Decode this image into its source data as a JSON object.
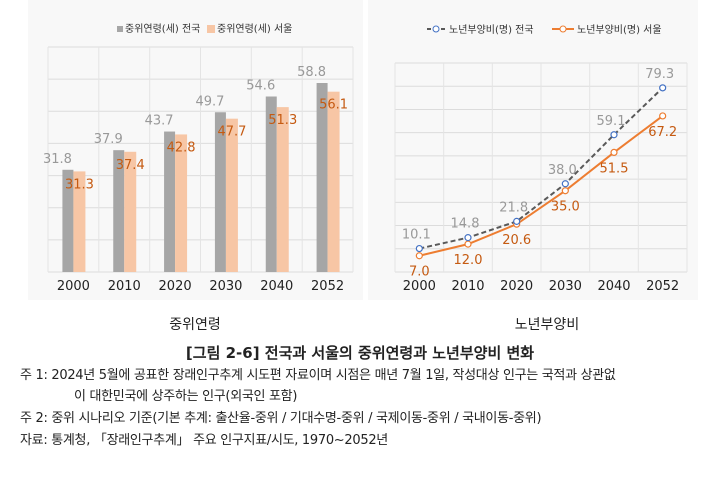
{
  "chart_data": [
    {
      "type": "bar",
      "categories": [
        "2000",
        "2010",
        "2020",
        "2030",
        "2040",
        "2052"
      ],
      "series": [
        {
          "name": "중위연령(세) 전국",
          "values": [
            31.8,
            37.9,
            43.7,
            49.7,
            54.6,
            58.8
          ],
          "color": "#a6a6a6"
        },
        {
          "name": "중위연령(세) 서울",
          "values": [
            31.3,
            37.4,
            42.8,
            47.7,
            51.3,
            56.1
          ],
          "color": "#f7c6a5",
          "label_color": "#c55a11"
        }
      ],
      "ylim": [
        0,
        70
      ],
      "grid": true,
      "legend": "top",
      "caption": "중위연령"
    },
    {
      "type": "line",
      "categories": [
        "2000",
        "2010",
        "2020",
        "2030",
        "2040",
        "2052"
      ],
      "series": [
        {
          "name": "노년부양비(명) 전국",
          "values": [
            10.1,
            14.8,
            21.8,
            38.0,
            59.1,
            79.3
          ],
          "color": "#595959",
          "marker_color": "#4472c4",
          "style": "dashed"
        },
        {
          "name": "노년부양비(명) 서울",
          "values": [
            7.0,
            12.0,
            20.6,
            35.0,
            51.5,
            67.2
          ],
          "color": "#ed7d31",
          "label_color": "#c55a11",
          "style": "solid"
        }
      ],
      "ylim": [
        0,
        90
      ],
      "grid": true,
      "legend": "top",
      "caption": "노년부양비"
    }
  ],
  "figure": {
    "title": "[그림 2-6] 전국과 서울의 중위연령과 노년부양비 변화",
    "notes": [
      "주 1: 2024년 5월에 공표한 장래인구추계 시도편 자료이며 시점은 매년 7월 1일, 작성대상 인구는 국적과 상관없",
      "이 대한민국에 상주하는 인구(외국인 포함)",
      "주 2: 중위 시나리오 기준(기본 추계: 출산율-중위 / 기대수명-중위 / 국제이동-중위 / 국내이동-중위)",
      "자료: 통계청, 「장래인구추계」 주요 인구지표/시도, 1970~2052년"
    ]
  }
}
